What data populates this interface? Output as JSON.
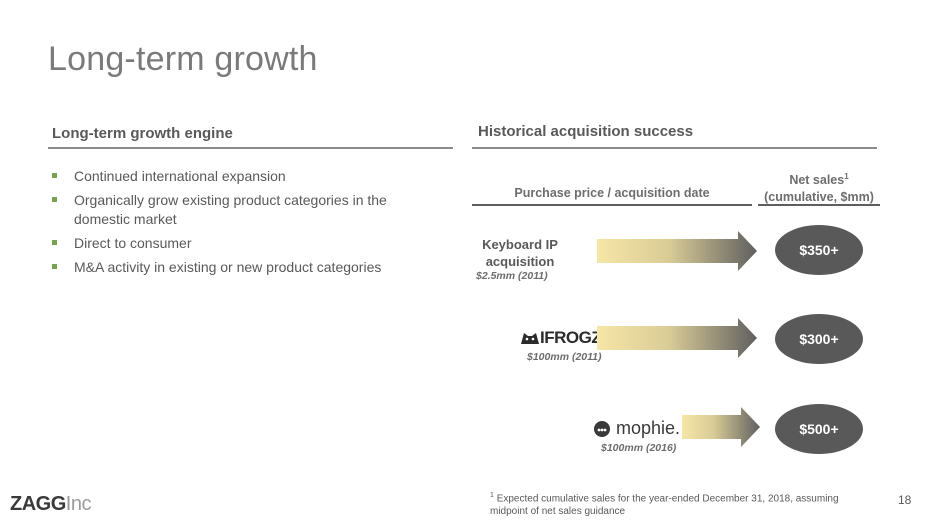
{
  "page_title": "Long-term growth",
  "left": {
    "heading": "Long-term growth engine",
    "bullets": [
      "Continued international expansion",
      "Organically grow existing product categories in the domestic market",
      "Direct to consumer",
      "M&A activity in existing or new product categories"
    ]
  },
  "right": {
    "heading": "Historical acquisition success",
    "col_purchase": "Purchase price / acquisition date",
    "col_sales_line1": "Net sales",
    "col_sales_sup": "1",
    "col_sales_line2": "(cumulative, $mm)",
    "acquisitions": [
      {
        "name": "Keyboard IP acquisition",
        "price": "$2.5mm (2011)",
        "sales": "$350+"
      },
      {
        "logo": "IFROGZ",
        "logo_mark": "®",
        "price": "$100mm (2011)",
        "sales": "$300+"
      },
      {
        "logo": "mophie.",
        "price": "$100mm (2016)",
        "sales": "$500+"
      }
    ]
  },
  "footnote": {
    "sup": "1",
    "text": "Expected cumulative sales for the year-ended December 31, 2018, assuming midpoint of net sales guidance"
  },
  "page_number": "18",
  "brand": {
    "name": "ZAGG",
    "suffix": "Inc"
  },
  "colors": {
    "bullet": "#77a14a",
    "oval": "#595959",
    "arrow_start": "#f6e6a6",
    "arrow_end": "#5f5f5f"
  }
}
